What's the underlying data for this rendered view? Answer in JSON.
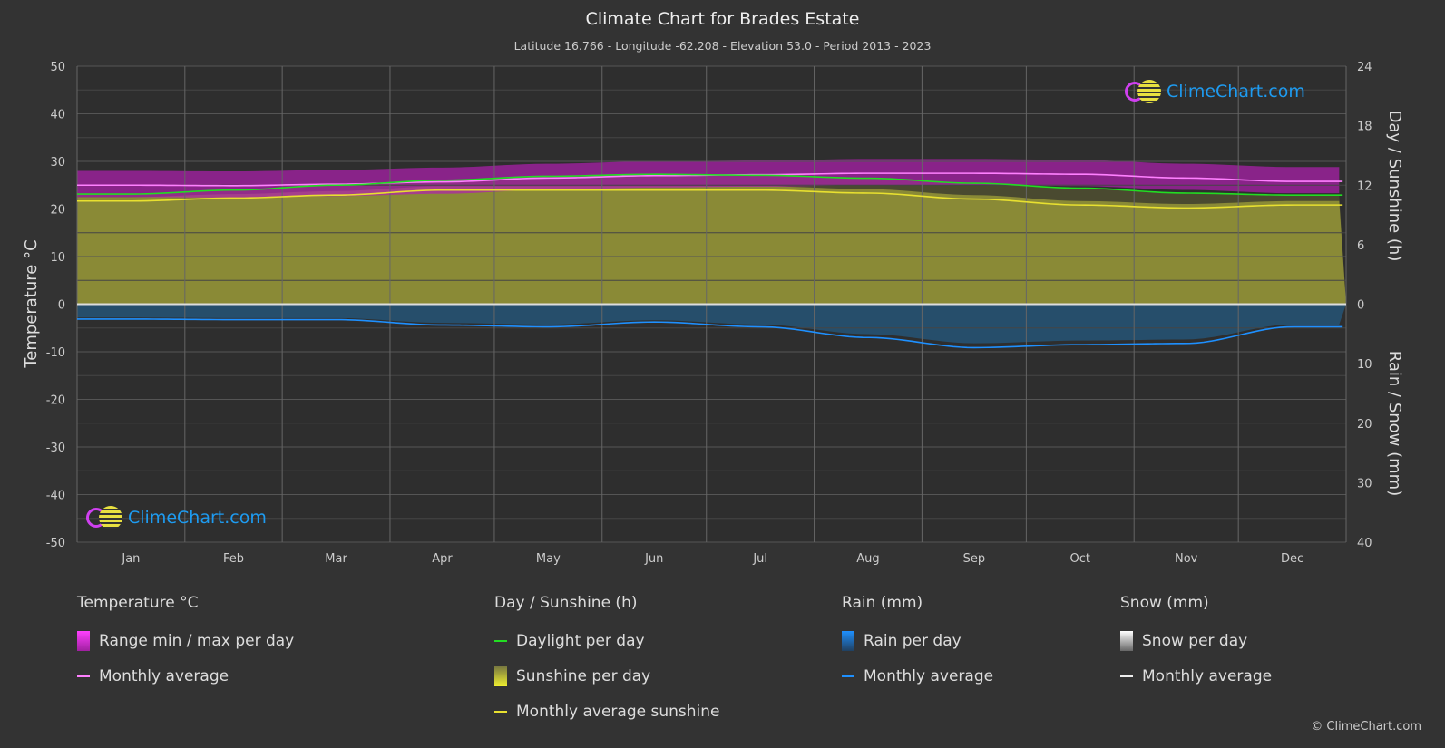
{
  "header": {
    "title": "Climate Chart for Brades Estate",
    "subtitle": "Latitude 16.766 - Longitude -62.208 - Elevation 53.0 - Period 2013 - 2023"
  },
  "logo_text": "ClimeChart.com",
  "copyright": "© ClimeChart.com",
  "chart_data": {
    "type": "line",
    "categories": [
      "Jan",
      "Feb",
      "Mar",
      "Apr",
      "May",
      "Jun",
      "Jul",
      "Aug",
      "Sep",
      "Oct",
      "Nov",
      "Dec"
    ],
    "left_axis": {
      "label": "Temperature °C",
      "range": [
        -50,
        50
      ],
      "ticks": [
        50,
        40,
        30,
        20,
        10,
        0,
        -10,
        -20,
        -30,
        -40,
        -50
      ]
    },
    "right_axis_top": {
      "label": "Day / Sunshine (h)",
      "range": [
        0,
        24
      ],
      "ticks": [
        24,
        18,
        12,
        6,
        0
      ]
    },
    "right_axis_bottom": {
      "label": "Rain / Snow (mm)",
      "range": [
        0,
        40
      ],
      "ticks": [
        0,
        10,
        20,
        30,
        40
      ]
    },
    "grid": true,
    "series": [
      {
        "name": "Monthly average",
        "group": "Temperature °C",
        "axis": "temperature",
        "color": "#ff80ff",
        "values": [
          25.0,
          24.9,
          25.2,
          25.7,
          26.5,
          27.0,
          27.2,
          27.5,
          27.5,
          27.3,
          26.5,
          25.8
        ]
      },
      {
        "name": "Daylight per day",
        "group": "Day / Sunshine (h)",
        "axis": "hours",
        "color": "#22dd22",
        "values": [
          11.1,
          11.5,
          12.0,
          12.5,
          12.9,
          13.1,
          13.0,
          12.7,
          12.2,
          11.7,
          11.2,
          11.0
        ]
      },
      {
        "name": "Monthly average sunshine",
        "group": "Day / Sunshine (h)",
        "axis": "hours",
        "color": "#e8e030",
        "values": [
          10.4,
          10.7,
          11.0,
          11.5,
          11.5,
          11.5,
          11.5,
          11.2,
          10.6,
          10.0,
          9.7,
          10.0
        ]
      },
      {
        "name": "Monthly average",
        "group": "Rain (mm)",
        "axis": "rain",
        "color": "#1e90ff",
        "values": [
          2.5,
          2.6,
          2.6,
          3.5,
          3.8,
          3.0,
          3.8,
          5.6,
          7.3,
          6.8,
          6.6,
          3.8
        ]
      }
    ],
    "legend": {
      "placement": "bottom",
      "groups": [
        {
          "title": "Temperature °C",
          "items": [
            "Range min / max per day",
            "Monthly average"
          ]
        },
        {
          "title": "Day / Sunshine (h)",
          "items": [
            "Daylight per day",
            "Sunshine per day",
            "Monthly average sunshine"
          ]
        },
        {
          "title": "Rain (mm)",
          "items": [
            "Rain per day",
            "Monthly average"
          ]
        },
        {
          "title": "Snow (mm)",
          "items": [
            "Snow per day",
            "Monthly average"
          ]
        }
      ]
    }
  }
}
